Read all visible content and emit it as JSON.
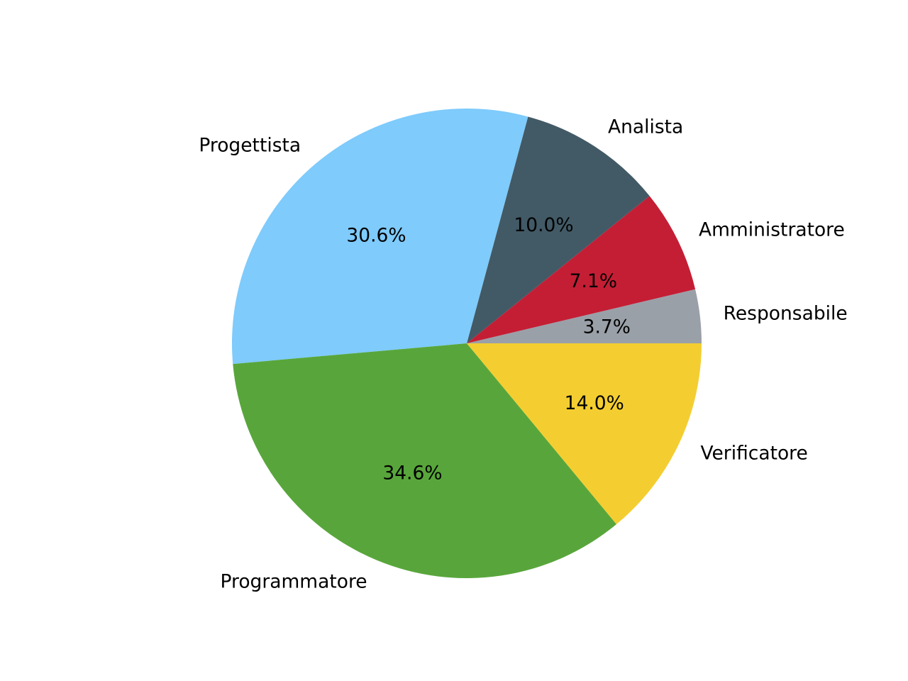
{
  "chart_data": {
    "type": "pie",
    "title": "",
    "start_angle_deg": 0,
    "direction": "counterclockwise",
    "slices": [
      {
        "label": "Responsabile",
        "value": 3.7,
        "pct_label": "3.7%",
        "color": "#9aa0a8"
      },
      {
        "label": "Amministratore",
        "value": 7.1,
        "pct_label": "7.1%",
        "color": "#c41e35"
      },
      {
        "label": "Analista",
        "value": 10.0,
        "pct_label": "10.0%",
        "color": "#425a66"
      },
      {
        "label": "Progettista",
        "value": 30.6,
        "pct_label": "30.6%",
        "color": "#7ecbfc"
      },
      {
        "label": "Programmatore",
        "value": 34.6,
        "pct_label": "34.6%",
        "color": "#58a63b"
      },
      {
        "label": "Verificatore",
        "value": 14.0,
        "pct_label": "14.0%",
        "color": "#f4ce30"
      }
    ],
    "legend": "none"
  }
}
